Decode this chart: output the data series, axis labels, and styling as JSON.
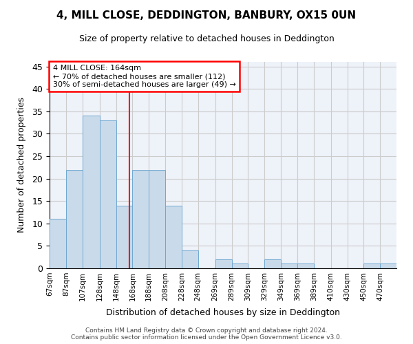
{
  "title": "4, MILL CLOSE, DEDDINGTON, BANBURY, OX15 0UN",
  "subtitle": "Size of property relative to detached houses in Deddington",
  "xlabel": "Distribution of detached houses by size in Deddington",
  "ylabel": "Number of detached properties",
  "categories": [
    "67sqm",
    "87sqm",
    "107sqm",
    "128sqm",
    "148sqm",
    "168sqm",
    "188sqm",
    "208sqm",
    "228sqm",
    "248sqm",
    "269sqm",
    "289sqm",
    "309sqm",
    "329sqm",
    "349sqm",
    "369sqm",
    "389sqm",
    "410sqm",
    "430sqm",
    "450sqm",
    "470sqm"
  ],
  "values": [
    11,
    22,
    34,
    33,
    14,
    22,
    22,
    14,
    4,
    0,
    2,
    1,
    0,
    2,
    1,
    1,
    0,
    0,
    0,
    1,
    1
  ],
  "bar_color": "#c9daea",
  "bar_edge_color": "#6fa8d0",
  "annotation_box_text": "4 MILL CLOSE: 164sqm\n← 70% of detached houses are smaller (112)\n30% of semi-detached houses are larger (49) →",
  "annotation_box_color": "white",
  "annotation_box_edge_color": "red",
  "vline_color": "red",
  "ylim": [
    0,
    46
  ],
  "yticks": [
    0,
    5,
    10,
    15,
    20,
    25,
    30,
    35,
    40,
    45
  ],
  "grid_color": "#cccccc",
  "background_color": "#eef2f9",
  "footer_line1": "Contains HM Land Registry data © Crown copyright and database right 2024.",
  "footer_line2": "Contains public sector information licensed under the Open Government Licence v3.0.",
  "property_size": 164,
  "bin_edges": [
    67,
    87,
    107,
    128,
    148,
    168,
    188,
    208,
    228,
    248,
    269,
    289,
    309,
    329,
    349,
    369,
    389,
    410,
    430,
    450,
    470,
    490
  ]
}
